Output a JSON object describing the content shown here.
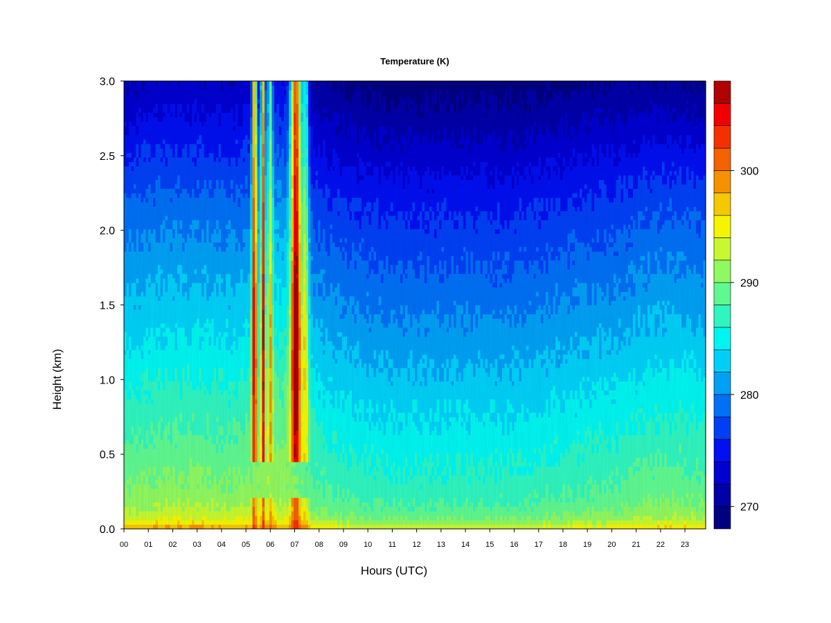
{
  "chart_data": {
    "type": "heatmap",
    "title": "Temperature (K)",
    "xlabel": "Hours (UTC)",
    "ylabel": "Height (km)",
    "xlim": [
      0,
      23.85
    ],
    "ylim": [
      0.0,
      3.0
    ],
    "x_ticks": [
      "00",
      "01",
      "02",
      "03",
      "04",
      "05",
      "06",
      "07",
      "08",
      "09",
      "10",
      "11",
      "12",
      "13",
      "14",
      "15",
      "16",
      "17",
      "18",
      "19",
      "20",
      "21",
      "22",
      "23"
    ],
    "y_ticks": [
      "0.0",
      "0.5",
      "1.0",
      "1.5",
      "2.0",
      "2.5",
      "3.0"
    ],
    "colorbar": {
      "min": 268,
      "max": 308,
      "levels": [
        268,
        270,
        272,
        274,
        276,
        278,
        280,
        282,
        284,
        286,
        288,
        290,
        292,
        294,
        296,
        298,
        300,
        302,
        304,
        306,
        308
      ],
      "ticks": [
        "270",
        "280",
        "290",
        "300"
      ],
      "colors": [
        "#000080",
        "#0000a8",
        "#0000d0",
        "#0010f0",
        "#0040f5",
        "#0070f5",
        "#00a0f5",
        "#00d0f8",
        "#00f5f0",
        "#30f5c0",
        "#60f890",
        "#90f860",
        "#c8f830",
        "#f5f500",
        "#f5c800",
        "#f59000",
        "#f56000",
        "#f53000",
        "#f00000",
        "#b00000"
      ]
    },
    "grid": false,
    "legend": "colorbar-right"
  }
}
